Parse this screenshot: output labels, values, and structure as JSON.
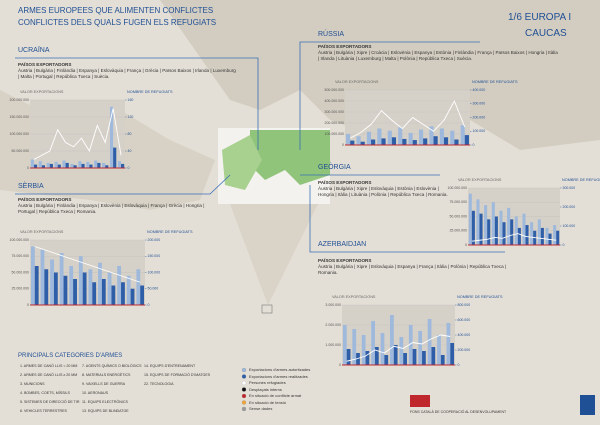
{
  "header": {
    "title": "ARMES EUROPEES QUE ALIMENTEN CONFLICTES",
    "subtitle": "CONFLICTES DELS QUALS FUGEN ELS REFUGIATS",
    "section": "1/6  EUROPA I",
    "region": "CAUCAS"
  },
  "chart_data": [
    {
      "type": "bar",
      "title": "UCRAÏNA",
      "subtitle": "PAÏSOS EXPORTADORS",
      "text": "Àustria | Bulgària | Finlàndia | Espanya | Eslovàquia | França | Grècia | Països Baixos | Irlanda | Luxemburg | Malta | Portugal | República Txeca | Suècia.",
      "ylabel": "VALOR EXPORTACIONS",
      "y2label": "NOMBRE DE REFUGIATS",
      "categories": [
        null,
        null,
        null,
        null,
        null,
        null,
        null,
        null,
        null,
        null,
        null,
        null
      ],
      "series": [
        {
          "color": "#9fb9dc",
          "values": [
            25000000,
            20000000,
            15000000,
            18000000,
            22000000,
            12000000,
            20000000,
            18000000,
            22000000,
            15000000,
            180000000,
            20000000
          ]
        },
        {
          "color": "#2f5ea8",
          "values": [
            10000000,
            8000000,
            12000000,
            10000000,
            15000000,
            8000000,
            12000000,
            10000000,
            15000000,
            8000000,
            60000000,
            12000000
          ]
        },
        {
          "color": "#ffffff",
          "axis": "y2",
          "values": [
            20,
            30,
            40,
            90,
            60,
            50,
            70,
            40,
            100,
            60,
            140,
            30
          ]
        }
      ],
      "ylim": [
        0,
        200000000
      ],
      "yticks": [
        0,
        {
          "value": 50000000,
          "label": "50.000.000"
        },
        {
          "value": 100000000,
          "label": "100.000.000"
        },
        {
          "value": 150000000,
          "label": "150.000.000"
        },
        {
          "value": 200000000,
          "label": "200.000.000"
        }
      ],
      "y2lim": [
        0,
        160
      ],
      "y2ticks": [
        0,
        40,
        80,
        120,
        160
      ]
    },
    {
      "type": "bar",
      "title": "RÚSSIA",
      "subtitle": "PAÏSOS EXPORTADORS",
      "text": "Àustria | Bulgària | Xipre | Croàcia | Eslovènia | Espanya | Estònia | Finlàndia | França | Països Baixos | Hongria | Itàlia | Irlanda | Lituània | Luxemburg | Malta | Polònia | República Txeca | Suècia.",
      "ylabel": "VALOR EXPORTACIONS",
      "y2label": "NOMBRE DE REFUGIATS",
      "categories": [
        null,
        null,
        null,
        null,
        null,
        null,
        null,
        null,
        null,
        null,
        null,
        null
      ],
      "series": [
        {
          "color": "#9fb9dc",
          "values": [
            100000000,
            80000000,
            120000000,
            150000000,
            130000000,
            160000000,
            110000000,
            140000000,
            170000000,
            150000000,
            130000000,
            180000000
          ]
        },
        {
          "color": "#2f5ea8",
          "values": [
            40000000,
            30000000,
            50000000,
            60000000,
            70000000,
            55000000,
            45000000,
            60000000,
            80000000,
            70000000,
            50000000,
            90000000
          ]
        },
        {
          "color": "#ffffff",
          "axis": "y2",
          "values": [
            50000,
            90000,
            150000,
            250000,
            180000,
            120000,
            200000,
            150000,
            100000,
            180000,
            320000,
            130000
          ]
        }
      ],
      "ylim": [
        0,
        500000000
      ],
      "yticks": [
        0,
        {
          "value": 100000000,
          "label": "100.000.000"
        },
        {
          "value": 200000000,
          "label": "200.000.000"
        },
        {
          "value": 300000000,
          "label": "300.000.000"
        },
        {
          "value": 400000000,
          "label": "400.000.000"
        },
        {
          "value": 500000000,
          "label": "500.000.000"
        }
      ],
      "y2lim": [
        0,
        400000
      ],
      "y2ticks": [
        0,
        {
          "value": 100000,
          "label": "100.000"
        },
        {
          "value": 200000,
          "label": "200.000"
        },
        {
          "value": 300000,
          "label": "300.000"
        },
        {
          "value": 400000,
          "label": "400.000"
        }
      ]
    },
    {
      "type": "bar",
      "title": "SÈRBIA",
      "subtitle": "PAÏSOS EXPORTADORS",
      "text": "Àustria | Bulgària | Finlàndia | Espanya | Eslovènia | Eslovàquia | França | Grècia | Hongria | Portugal | República Txeca | Romania.",
      "ylabel": "VALOR EXPORTACIONS",
      "y2label": "NOMBRE DE REFUGIATS",
      "categories": [
        null,
        null,
        null,
        null,
        null,
        null,
        null,
        null,
        null,
        null,
        null,
        null
      ],
      "series": [
        {
          "color": "#9fb9dc",
          "values": [
            90000000,
            85000000,
            70000000,
            80000000,
            60000000,
            75000000,
            55000000,
            65000000,
            50000000,
            60000000,
            45000000,
            55000000
          ]
        },
        {
          "color": "#2f5ea8",
          "values": [
            60000000,
            55000000,
            50000000,
            45000000,
            40000000,
            50000000,
            35000000,
            40000000,
            30000000,
            35000000,
            25000000,
            30000000
          ]
        },
        {
          "color": "#ffffff",
          "axis": "y2",
          "values": [
            180000,
            170000,
            160000,
            150000,
            140000,
            130000,
            120000,
            110000,
            100000,
            90000,
            80000,
            70000
          ]
        }
      ],
      "ylim": [
        0,
        100000000
      ],
      "yticks": [
        0,
        {
          "value": 25000000,
          "label": "25.000.000"
        },
        {
          "value": 50000000,
          "label": "50.000.000"
        },
        {
          "value": 75000000,
          "label": "75.000.000"
        },
        {
          "value": 100000000,
          "label": "100.000.000"
        }
      ],
      "y2lim": [
        0,
        200000
      ],
      "y2ticks": [
        0,
        {
          "value": 50000,
          "label": "50.000"
        },
        {
          "value": 100000,
          "label": "100.000"
        },
        {
          "value": 150000,
          "label": "150.000"
        },
        {
          "value": 200000,
          "label": "200.000"
        }
      ]
    },
    {
      "type": "bar",
      "title": "GEÒRGIA",
      "subtitle": "PAÏSOS EXPORTADORS",
      "text": "Àustria | Bulgària | Xipre | Eslovàquia | Estònia | Eslovènia | Hongria | Itàlia | Lituània | Polònia | República Txeca | Romania.",
      "ylabel": "VALOR EXPORTACIONS",
      "y2label": "NOMBRE DE REFUGIATS",
      "categories": [
        null,
        null,
        null,
        null,
        null,
        null,
        null,
        null,
        null,
        null,
        null,
        null
      ],
      "series": [
        {
          "color": "#9fb9dc",
          "values": [
            90000000,
            80000000,
            70000000,
            75000000,
            60000000,
            65000000,
            50000000,
            55000000,
            40000000,
            45000000,
            30000000,
            35000000
          ]
        },
        {
          "color": "#2f5ea8",
          "values": [
            60000000,
            55000000,
            45000000,
            50000000,
            40000000,
            45000000,
            30000000,
            35000000,
            25000000,
            30000000,
            20000000,
            25000000
          ]
        },
        {
          "color": "#ffffff",
          "axis": "y2",
          "values": [
            20000,
            25000,
            30000,
            40000,
            35000,
            50000,
            60000,
            45000,
            40000,
            35000,
            30000,
            25000
          ]
        }
      ],
      "ylim": [
        0,
        100000000
      ],
      "yticks": [
        0,
        {
          "value": 25000000,
          "label": "25.000.000"
        },
        {
          "value": 50000000,
          "label": "50.000.000"
        },
        {
          "value": 75000000,
          "label": "75.000.000"
        },
        {
          "value": 100000000,
          "label": "100.000.000"
        }
      ],
      "y2lim": [
        0,
        300000
      ],
      "y2ticks": [
        0,
        {
          "value": 100000,
          "label": "100.000"
        },
        {
          "value": 200000,
          "label": "200.000"
        },
        {
          "value": 300000,
          "label": "300.000"
        }
      ]
    },
    {
      "type": "bar",
      "title": "AZERBAIDJAN",
      "subtitle": "PAÏSOS EXPORTADORS",
      "text": "Àustria | Bulgària | Xipre | Eslovàquia | Espanya | França | Itàlia | Polònia | República Txeca | Romania.",
      "ylabel": "VALOR EXPORTACIONS",
      "y2label": "NOMBRE DE REFUGIATS",
      "categories": [
        null,
        null,
        null,
        null,
        null,
        null,
        null,
        null,
        null,
        null,
        null,
        null
      ],
      "series": [
        {
          "color": "#9fb9dc",
          "values": [
            2000000,
            1800000,
            1500000,
            2200000,
            1600000,
            2500000,
            1400000,
            2000000,
            1700000,
            2300000,
            1500000,
            2100000
          ]
        },
        {
          "color": "#2f5ea8",
          "values": [
            800000,
            600000,
            700000,
            900000,
            500000,
            1000000,
            600000,
            800000,
            700000,
            900000,
            500000,
            1100000
          ]
        },
        {
          "color": "#ffffff",
          "axis": "y2",
          "values": [
            50000,
            80000,
            120000,
            200000,
            160000,
            250000,
            220000,
            300000,
            280000,
            350000,
            400000,
            380000
          ]
        }
      ],
      "ylim": [
        0,
        3000000
      ],
      "yticks": [
        0,
        {
          "value": 1000000,
          "label": "1.000.000"
        },
        {
          "value": 2000000,
          "label": "2.000.000"
        },
        {
          "value": 3000000,
          "label": "3.000.000"
        }
      ],
      "y2lim": [
        0,
        800000
      ],
      "y2ticks": [
        0,
        {
          "value": 200000,
          "label": "200.000"
        },
        {
          "value": 400000,
          "label": "400.000"
        },
        {
          "value": 600000,
          "label": "600.000"
        },
        {
          "value": 800000,
          "label": "800.000"
        }
      ]
    }
  ],
  "categories_legend": {
    "title": "PRINCIPALS CATEGORIES D'ARMES",
    "items": [
      "1. ARMES DE CANÓ LLIS < 20 MM",
      "2. ARMES DE CANÓ LLIS ≥ 20 MM",
      "3. MUNICIONS",
      "4. BOMBES, COETS, MÍSSILS",
      "5. SISTEMES DE DIRECCIÓ DE TIR",
      "6. VEHICLES TERRESTRES",
      "7. AGENTS QUÍMICS O BIOLÒGICS",
      "8. MATERIALS ENERGÈTICS",
      "9. VAIXELLS DE GUERRA",
      "10. AERONAUS",
      "11. EQUIPS ELECTRÒNICS",
      "13. EQUIPS DE BLINDATGE",
      "14. EQUIPS D'ENTRENAMENT",
      "15. EQUIPS DE FORMACIÓ D'IMATGES",
      "22. TECNOLOGIA"
    ]
  },
  "legend": {
    "items": [
      "Exportacions d'armes autoritzades",
      "Exportacions d'armes realitzades",
      "Persones refugiades",
      "Desplaçats interns",
      "En situació de conflicte armat",
      "En situació de tensió",
      "Sense dades"
    ],
    "colors": [
      "#9fb9dc",
      "#2f5ea8",
      "#ffffff",
      "#111111",
      "#c0272d",
      "#f0a23a",
      "#9a9a9a"
    ]
  },
  "footer": {
    "org": "FONS CATALÀ DE COOPERACIÓ AL DESENVOLUPAMENT"
  }
}
